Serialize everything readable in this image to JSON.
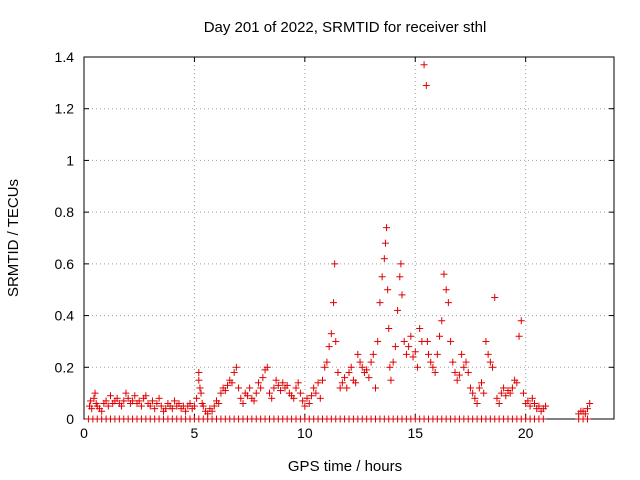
{
  "chart_data": {
    "type": "scatter",
    "title": "Day 201 of 2022, SRMTID for receiver sthl",
    "xlabel": "GPS time / hours",
    "ylabel": "SRMTID / TECUs",
    "xlim": [
      0,
      24
    ],
    "ylim": [
      0,
      1.4
    ],
    "xticks": [
      0,
      5,
      10,
      15,
      20
    ],
    "yticks": [
      0,
      0.2,
      0.4,
      0.6,
      0.8,
      1,
      1.2,
      1.4
    ],
    "grid": true,
    "marker": "+",
    "color": "#e00000",
    "series": [
      {
        "name": "SRMTID",
        "x": [
          0.25,
          0.3,
          0.35,
          0.45,
          0.5,
          0.55,
          0.6,
          0.7,
          0.8,
          0.9,
          1.0,
          1.1,
          1.2,
          1.3,
          1.4,
          1.5,
          1.6,
          1.7,
          1.8,
          1.9,
          2.0,
          2.1,
          2.2,
          2.3,
          2.4,
          2.5,
          2.6,
          2.7,
          2.8,
          2.9,
          3.0,
          3.1,
          3.2,
          3.3,
          3.4,
          3.5,
          3.6,
          3.7,
          3.8,
          3.9,
          4.0,
          4.1,
          4.2,
          4.3,
          4.4,
          4.5,
          4.6,
          4.7,
          4.8,
          4.9,
          5.0,
          5.1,
          5.2,
          5.2,
          5.25,
          5.3,
          5.35,
          5.4,
          5.5,
          5.6,
          5.7,
          5.8,
          5.9,
          6.0,
          6.1,
          6.2,
          6.3,
          6.4,
          6.5,
          6.6,
          6.7,
          6.8,
          6.9,
          7.0,
          7.1,
          7.2,
          7.3,
          7.4,
          7.5,
          7.6,
          7.7,
          7.8,
          7.9,
          8.0,
          8.1,
          8.2,
          8.3,
          8.4,
          8.5,
          8.6,
          8.7,
          8.8,
          8.9,
          9.0,
          9.1,
          9.2,
          9.3,
          9.4,
          9.5,
          9.6,
          9.7,
          9.8,
          9.9,
          10.0,
          10.1,
          10.2,
          10.3,
          10.4,
          10.5,
          10.6,
          10.7,
          10.8,
          10.9,
          11.0,
          11.1,
          11.2,
          11.3,
          11.35,
          11.4,
          11.5,
          11.6,
          11.7,
          11.8,
          11.9,
          12.0,
          12.1,
          12.2,
          12.3,
          12.4,
          12.5,
          12.6,
          12.7,
          12.8,
          12.9,
          13.0,
          13.1,
          13.2,
          13.3,
          13.4,
          13.5,
          13.6,
          13.65,
          13.7,
          13.75,
          13.8,
          13.85,
          13.9,
          14.0,
          14.1,
          14.2,
          14.3,
          14.35,
          14.4,
          14.5,
          14.6,
          14.7,
          14.8,
          14.9,
          15.0,
          15.1,
          15.2,
          15.3,
          15.4,
          15.5,
          15.55,
          15.6,
          15.7,
          15.8,
          15.9,
          16.0,
          16.1,
          16.2,
          16.3,
          16.4,
          16.5,
          16.6,
          16.7,
          16.8,
          16.9,
          17.0,
          17.1,
          17.2,
          17.3,
          17.4,
          17.5,
          17.6,
          17.7,
          17.8,
          17.9,
          18.0,
          18.1,
          18.2,
          18.3,
          18.4,
          18.5,
          18.6,
          18.7,
          18.8,
          18.9,
          19.0,
          19.1,
          19.2,
          19.3,
          19.4,
          19.5,
          19.6,
          19.7,
          19.8,
          19.9,
          20.0,
          20.1,
          20.2,
          20.3,
          20.4,
          20.5,
          20.6,
          20.7,
          20.8,
          20.9,
          22.4,
          22.5,
          22.6,
          22.7,
          22.8,
          22.9
        ],
        "y": [
          0.05,
          0.07,
          0.04,
          0.08,
          0.1,
          0.06,
          0.05,
          0.04,
          0.03,
          0.06,
          0.07,
          0.05,
          0.09,
          0.06,
          0.07,
          0.08,
          0.06,
          0.05,
          0.07,
          0.1,
          0.08,
          0.06,
          0.07,
          0.09,
          0.06,
          0.07,
          0.05,
          0.08,
          0.09,
          0.06,
          0.05,
          0.07,
          0.04,
          0.06,
          0.08,
          0.05,
          0.03,
          0.04,
          0.06,
          0.05,
          0.04,
          0.07,
          0.05,
          0.06,
          0.04,
          0.05,
          0.03,
          0.05,
          0.06,
          0.04,
          0.05,
          0.08,
          0.18,
          0.15,
          0.12,
          0.1,
          0.06,
          0.05,
          0.03,
          0.02,
          0.04,
          0.03,
          0.05,
          0.07,
          0.06,
          0.1,
          0.12,
          0.11,
          0.13,
          0.15,
          0.14,
          0.18,
          0.2,
          0.12,
          0.08,
          0.06,
          0.1,
          0.09,
          0.12,
          0.08,
          0.07,
          0.1,
          0.14,
          0.12,
          0.16,
          0.19,
          0.2,
          0.1,
          0.08,
          0.12,
          0.15,
          0.13,
          0.11,
          0.14,
          0.12,
          0.13,
          0.1,
          0.09,
          0.08,
          0.12,
          0.14,
          0.1,
          0.07,
          0.05,
          0.08,
          0.06,
          0.09,
          0.12,
          0.1,
          0.14,
          0.08,
          0.15,
          0.2,
          0.22,
          0.28,
          0.33,
          0.45,
          0.6,
          0.3,
          0.18,
          0.12,
          0.14,
          0.16,
          0.12,
          0.18,
          0.2,
          0.15,
          0.14,
          0.25,
          0.22,
          0.2,
          0.18,
          0.19,
          0.16,
          0.22,
          0.25,
          0.12,
          0.3,
          0.45,
          0.55,
          0.62,
          0.68,
          0.74,
          0.5,
          0.35,
          0.2,
          0.15,
          0.22,
          0.28,
          0.42,
          0.55,
          0.6,
          0.48,
          0.3,
          0.25,
          0.28,
          0.32,
          0.24,
          0.26,
          0.2,
          0.35,
          0.3,
          1.37,
          1.29,
          0.3,
          0.25,
          0.22,
          0.2,
          0.18,
          0.25,
          0.32,
          0.38,
          0.56,
          0.5,
          0.45,
          0.3,
          0.22,
          0.18,
          0.15,
          0.17,
          0.25,
          0.2,
          0.22,
          0.18,
          0.12,
          0.1,
          0.08,
          0.06,
          0.12,
          0.14,
          0.1,
          0.3,
          0.25,
          0.22,
          0.2,
          0.47,
          0.08,
          0.06,
          0.1,
          0.12,
          0.09,
          0.11,
          0.1,
          0.12,
          0.15,
          0.14,
          0.32,
          0.38,
          0.1,
          0.06,
          0.07,
          0.05,
          0.08,
          0.06,
          0.04,
          0.05,
          0.03,
          0.04,
          0.05,
          0.02,
          0.03,
          0.03,
          0.02,
          0.04,
          0.06
        ],
        "zero_x": [
          0.2,
          0.4,
          0.6,
          0.8,
          1.0,
          1.2,
          1.4,
          1.6,
          1.8,
          2.0,
          2.2,
          2.4,
          2.6,
          2.8,
          3.0,
          3.2,
          3.4,
          3.6,
          3.8,
          4.0,
          4.2,
          4.4,
          4.6,
          4.8,
          5.0,
          5.2,
          5.4,
          5.6,
          5.8,
          6.0,
          6.2,
          6.4,
          6.6,
          6.8,
          7.0,
          7.2,
          7.4,
          7.6,
          7.8,
          8.0,
          8.2,
          8.4,
          8.6,
          8.8,
          9.0,
          9.2,
          9.4,
          9.6,
          9.8,
          10.0,
          10.2,
          10.4,
          10.6,
          10.8,
          11.0,
          11.2,
          11.4,
          11.6,
          11.8,
          12.0,
          12.2,
          12.4,
          12.6,
          12.8,
          13.0,
          13.2,
          13.4,
          13.6,
          13.8,
          14.0,
          14.2,
          14.4,
          14.6,
          14.8,
          15.0,
          15.2,
          15.4,
          15.6,
          15.8,
          16.0,
          16.2,
          16.4,
          16.6,
          16.8,
          17.0,
          17.2,
          17.4,
          17.6,
          17.8,
          18.0,
          18.2,
          18.4,
          18.6,
          18.8,
          19.0,
          19.2,
          19.4,
          19.6,
          19.8,
          20.0,
          20.2,
          20.4,
          20.6,
          20.8,
          22.4,
          22.6,
          22.8
        ]
      }
    ]
  }
}
